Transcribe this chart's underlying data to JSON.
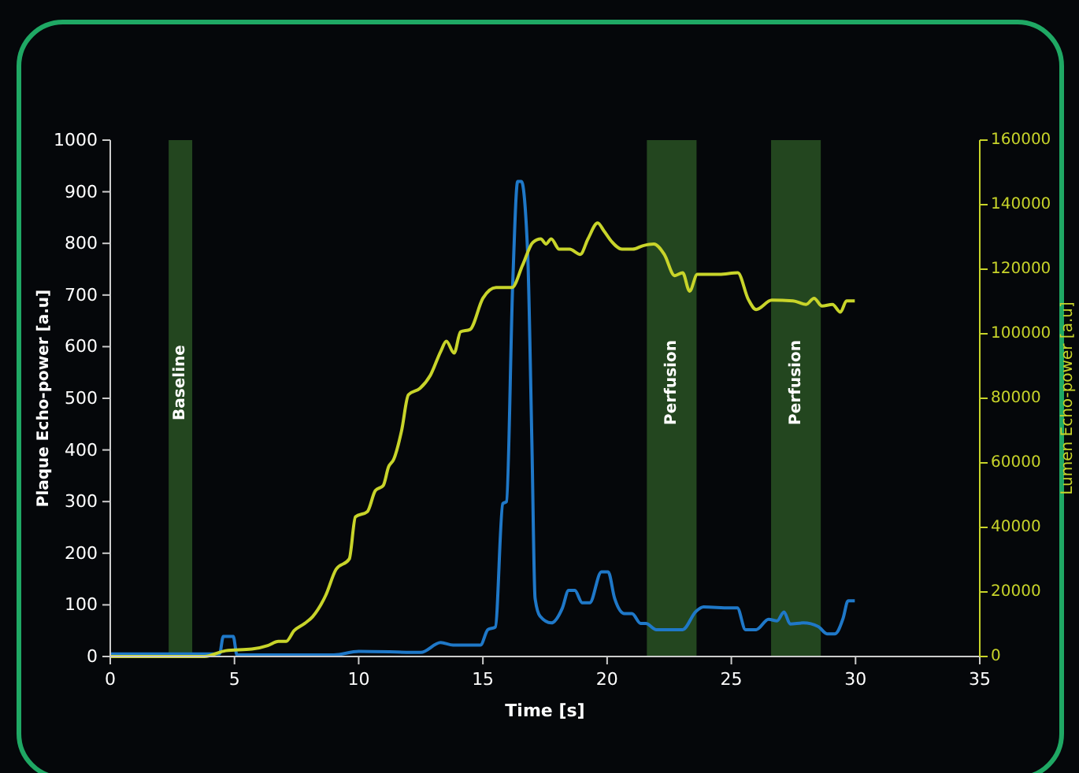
{
  "chart_data": {
    "type": "line",
    "xlabel": "Time [s]",
    "ylabel": "Plaque Echo-power [a.u]",
    "y2label": "Lumen Echo-power [a.u]",
    "xlim": [
      0,
      35
    ],
    "xticks": [
      0,
      5,
      10,
      15,
      20,
      25,
      30,
      35
    ],
    "ylim": [
      0,
      1000
    ],
    "yticks": [
      0,
      100,
      200,
      300,
      400,
      500,
      600,
      700,
      800,
      900,
      1000
    ],
    "y2lim": [
      0,
      160000
    ],
    "y2ticks": [
      0,
      20000,
      40000,
      60000,
      80000,
      100000,
      120000,
      140000,
      160000
    ],
    "grid": false,
    "marker": "none",
    "line_style": "solid",
    "bands": [
      {
        "axis": "x",
        "from": 2.35,
        "to": 3.3,
        "label": "Baseline",
        "color": "#23461f"
      },
      {
        "axis": "x",
        "from": 21.6,
        "to": 23.6,
        "label": "Perfusion",
        "color": "#23461f"
      },
      {
        "axis": "x",
        "from": 26.6,
        "to": 28.6,
        "label": "Perfusion",
        "color": "#23461f"
      }
    ],
    "series": [
      {
        "color": "#1f78c8",
        "x": [
          0,
          4.4,
          4.55,
          4.95,
          5.1,
          9,
          10,
          12.5,
          13.3,
          13.8,
          14.9,
          15.2,
          15.5,
          15.8,
          15.95,
          16.2,
          16.4,
          16.55,
          16.8,
          16.97,
          17.1,
          17.3,
          17.75,
          18.2,
          18.45,
          18.7,
          19,
          19.3,
          19.77,
          20.04,
          20.3,
          20.7,
          21,
          21.35,
          21.56,
          21.98,
          23.04,
          23.57,
          23.88,
          24.94,
          25.24,
          25.57,
          26,
          26.5,
          26.84,
          27.12,
          27.37,
          27.9,
          28.5,
          28.85,
          29.17,
          29.5,
          29.7,
          29.97
        ],
        "values": [
          5,
          5,
          39,
          39,
          3,
          3,
          10,
          8,
          27,
          22,
          22,
          52,
          57,
          296,
          300,
          722,
          920,
          920,
          783,
          418,
          113,
          78,
          65,
          94,
          128,
          128,
          104,
          104,
          164,
          164,
          113,
          83,
          83,
          64,
          64,
          52,
          52,
          87,
          96,
          94,
          94,
          52,
          52,
          72,
          69,
          86,
          63,
          65,
          58,
          44,
          44,
          74,
          108,
          108
        ]
      },
      {
        "color": "#c8d42a",
        "axis": "y2",
        "x": [
          0,
          3.8,
          4.65,
          5.7,
          6.34,
          6.77,
          7.08,
          7.4,
          7.82,
          8.14,
          8.67,
          9.09,
          9.62,
          9.87,
          10.35,
          10.67,
          10.99,
          11.2,
          11.41,
          11.73,
          12,
          12.47,
          12.89,
          13.3,
          13.53,
          13.84,
          14.1,
          14.48,
          15,
          15.53,
          16.17,
          16.6,
          17.01,
          17.33,
          17.54,
          17.75,
          18.07,
          18.49,
          18.92,
          19.23,
          19.62,
          19.87,
          20.18,
          20.6,
          21.03,
          21.45,
          21.88,
          22.3,
          22.72,
          23.04,
          23.32,
          23.63,
          24.52,
          25.26,
          25.68,
          26,
          26.63,
          27.48,
          28.01,
          28.33,
          28.65,
          29.07,
          29.39,
          29.64,
          29.97
        ],
        "values": [
          0,
          0,
          1800,
          2300,
          3400,
          4700,
          4700,
          8000,
          10200,
          12300,
          18900,
          27000,
          30200,
          43300,
          44900,
          51400,
          53000,
          58700,
          61100,
          70100,
          81100,
          83100,
          87200,
          94500,
          97700,
          94000,
          100600,
          101300,
          111000,
          114300,
          114300,
          121300,
          128300,
          129400,
          127800,
          129400,
          126200,
          126200,
          124600,
          129400,
          134300,
          131900,
          128600,
          126200,
          126200,
          127300,
          127800,
          124600,
          118000,
          118900,
          113200,
          118400,
          118400,
          118900,
          110700,
          107500,
          110400,
          110200,
          109100,
          111000,
          108600,
          109100,
          106700,
          110200,
          110200
        ]
      }
    ]
  }
}
